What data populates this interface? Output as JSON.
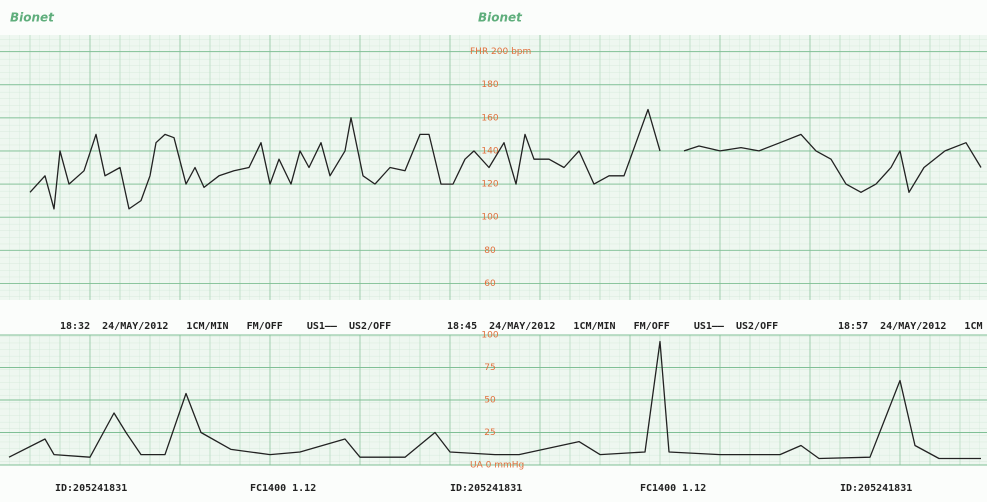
{
  "header_logos": [
    "Bionet",
    "Bionet"
  ],
  "status_lines": [
    "18:32  24/MAY/2012   1CM/MIN   FM/OFF    US1——  US2/OFF",
    "18:45  24/MAY/2012   1CM/MIN   FM/OFF    US1——  US2/OFF",
    "18:57  24/MAY/2012   1CM"
  ],
  "footer": [
    "ID:205241831",
    "FC1400 1.12",
    "ID:205241831",
    "FC1400 1.12",
    "ID:205241831"
  ],
  "chart_data": [
    {
      "type": "line",
      "xlim": [
        0,
        32.9
      ],
      "ylim": [
        50,
        210
      ],
      "grid": true,
      "yticks": [
        {
          "value": 200,
          "label": "FHR 200 bpm"
        },
        180,
        160,
        140,
        120,
        100,
        80,
        60
      ],
      "x": [
        1.0,
        1.5,
        1.8,
        2.0,
        2.3,
        2.8,
        3.2,
        3.5,
        4.0,
        4.3,
        4.7,
        5.0,
        5.2,
        5.5,
        5.8,
        6.2,
        6.5,
        6.8,
        7.3,
        7.8,
        8.3,
        8.7,
        9.0,
        9.3,
        9.7,
        10.0,
        10.3,
        10.7,
        11.0,
        11.5,
        11.7,
        12.1,
        12.5,
        13.0,
        13.5,
        14.0,
        14.3,
        14.7,
        15.1,
        15.5,
        15.8,
        16.3,
        16.8,
        17.2,
        17.5,
        17.8,
        18.3,
        18.8,
        19.3,
        19.8,
        20.3,
        20.8,
        21.2,
        21.6,
        22.0,
        22.3,
        22.8,
        23.3,
        24.0,
        24.7,
        25.3,
        26.0,
        26.7,
        27.2,
        27.7,
        28.2,
        28.7,
        29.2,
        29.7,
        30.0,
        30.3,
        30.8,
        31.5,
        32.2,
        32.7
      ],
      "series": [
        {
          "color": "#222222",
          "values": [
            115,
            125,
            105,
            140,
            120,
            128,
            150,
            125,
            130,
            105,
            110,
            125,
            145,
            150,
            148,
            120,
            130,
            118,
            125,
            128,
            130,
            145,
            120,
            135,
            120,
            140,
            130,
            145,
            125,
            140,
            160,
            125,
            120,
            130,
            128,
            150,
            150,
            120,
            120,
            135,
            140,
            130,
            145,
            120,
            150,
            135,
            135,
            130,
            140,
            120,
            125,
            125,
            145,
            165,
            140,
            null,
            140,
            143,
            140,
            142,
            140,
            145,
            150,
            140,
            135,
            120,
            115,
            120,
            130,
            140,
            115,
            130,
            140,
            145,
            130
          ]
        }
      ]
    },
    {
      "type": "line",
      "xlim": [
        0,
        32.9
      ],
      "ylim": [
        0,
        100
      ],
      "grid": true,
      "yticks": [
        100,
        75,
        50,
        25,
        {
          "value": 0,
          "label": "UA 0 mmHg"
        }
      ],
      "x": [
        0.3,
        1.5,
        1.8,
        3.0,
        3.8,
        4.2,
        4.7,
        5.5,
        6.2,
        6.7,
        7.7,
        9.0,
        10.0,
        11.5,
        12.0,
        13.5,
        14.5,
        15.0,
        16.5,
        17.3,
        19.3,
        20.0,
        21.5,
        22.0,
        22.3,
        24.0,
        26.0,
        26.7,
        27.3,
        29.0,
        30.0,
        30.5,
        31.3,
        32.7
      ],
      "series": [
        {
          "color": "#222222",
          "values": [
            6,
            20,
            8,
            6,
            40,
            25,
            8,
            8,
            55,
            25,
            12,
            8,
            10,
            20,
            6,
            6,
            25,
            10,
            8,
            8,
            18,
            8,
            10,
            95,
            10,
            8,
            8,
            15,
            5,
            6,
            65,
            15,
            5,
            5
          ]
        }
      ]
    }
  ]
}
